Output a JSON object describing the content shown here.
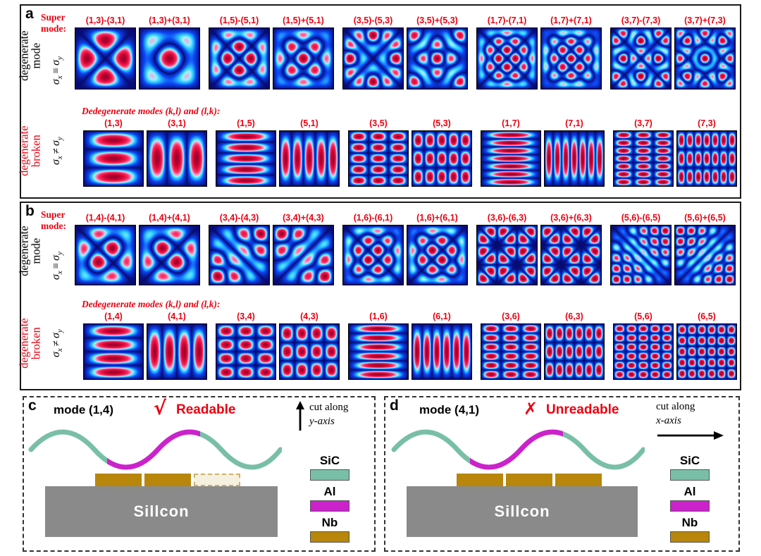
{
  "colors": {
    "accent_red": "#ec0010",
    "pattern_border": "#000000"
  },
  "panel_a": {
    "tag": "a",
    "top": {
      "side_label": "degenerate mode",
      "header": "Super mode:",
      "sigma": {
        "s": "σ",
        "sub1": "x",
        "rel": "≡",
        "sub2": "y"
      },
      "modes": [
        {
          "label": "(1,3)-(3,1)",
          "k": 1,
          "l": 3,
          "op": "-"
        },
        {
          "label": "(1,3)+(3,1)",
          "k": 1,
          "l": 3,
          "op": "+"
        },
        {
          "label": "(1,5)-(5,1)",
          "k": 1,
          "l": 5,
          "op": "-"
        },
        {
          "label": "(1,5)+(5,1)",
          "k": 1,
          "l": 5,
          "op": "+"
        },
        {
          "label": "(3,5)-(5,3)",
          "k": 3,
          "l": 5,
          "op": "-"
        },
        {
          "label": "(3,5)+(5,3)",
          "k": 3,
          "l": 5,
          "op": "+"
        },
        {
          "label": "(1,7)-(7,1)",
          "k": 1,
          "l": 7,
          "op": "-"
        },
        {
          "label": "(1,7)+(7,1)",
          "k": 1,
          "l": 7,
          "op": "+"
        },
        {
          "label": "(3,7)-(7,3)",
          "k": 3,
          "l": 7,
          "op": "-"
        },
        {
          "label": "(3,7)+(7,3)",
          "k": 3,
          "l": 7,
          "op": "+"
        }
      ]
    },
    "bottom": {
      "side_label": "degenerate broken",
      "header": "Dedegenerate modes (k,l) and (l,k):",
      "sigma": {
        "s": "σ",
        "sub1": "x",
        "rel": "≠",
        "sub2": "y"
      },
      "modes": [
        {
          "label": "(1,3)",
          "k": 1,
          "l": 3,
          "op": "pure"
        },
        {
          "label": "(3,1)",
          "k": 3,
          "l": 1,
          "op": "pure"
        },
        {
          "label": "(1,5)",
          "k": 1,
          "l": 5,
          "op": "pure"
        },
        {
          "label": "(5,1)",
          "k": 5,
          "l": 1,
          "op": "pure"
        },
        {
          "label": "(3,5)",
          "k": 3,
          "l": 5,
          "op": "pure"
        },
        {
          "label": "(5,3)",
          "k": 5,
          "l": 3,
          "op": "pure"
        },
        {
          "label": "(1,7)",
          "k": 1,
          "l": 7,
          "op": "pure"
        },
        {
          "label": "(7,1)",
          "k": 7,
          "l": 1,
          "op": "pure"
        },
        {
          "label": "(3,7)",
          "k": 3,
          "l": 7,
          "op": "pure"
        },
        {
          "label": "(7,3)",
          "k": 7,
          "l": 3,
          "op": "pure"
        }
      ]
    }
  },
  "panel_b": {
    "tag": "b",
    "top": {
      "side_label": "degenerate mode",
      "header": "Super mode:",
      "sigma": {
        "s": "σ",
        "sub1": "x",
        "rel": "≡",
        "sub2": "y"
      },
      "modes": [
        {
          "label": "(1,4)-(4,1)",
          "k": 1,
          "l": 4,
          "op": "-"
        },
        {
          "label": "(1,4)+(4,1)",
          "k": 1,
          "l": 4,
          "op": "+"
        },
        {
          "label": "(3,4)-(4,3)",
          "k": 3,
          "l": 4,
          "op": "-"
        },
        {
          "label": "(3,4)+(4,3)",
          "k": 3,
          "l": 4,
          "op": "+"
        },
        {
          "label": "(1,6)-(6,1)",
          "k": 1,
          "l": 6,
          "op": "-"
        },
        {
          "label": "(1,6)+(6,1)",
          "k": 1,
          "l": 6,
          "op": "+"
        },
        {
          "label": "(3,6)-(6,3)",
          "k": 3,
          "l": 6,
          "op": "-"
        },
        {
          "label": "(3,6)+(6,3)",
          "k": 3,
          "l": 6,
          "op": "+"
        },
        {
          "label": "(5,6)-(6,5)",
          "k": 5,
          "l": 6,
          "op": "-"
        },
        {
          "label": "(5,6)+(6,5)",
          "k": 5,
          "l": 6,
          "op": "+"
        }
      ]
    },
    "bottom": {
      "side_label": "degenerate broken",
      "header": "Dedegenerate modes (k,l) and (l,k):",
      "sigma": {
        "s": "σ",
        "sub1": "x",
        "rel": "≠",
        "sub2": "y"
      },
      "modes": [
        {
          "label": "(1,4)",
          "k": 1,
          "l": 4,
          "op": "pure"
        },
        {
          "label": "(4,1)",
          "k": 4,
          "l": 1,
          "op": "pure"
        },
        {
          "label": "(3,4)",
          "k": 3,
          "l": 4,
          "op": "pure"
        },
        {
          "label": "(4,3)",
          "k": 4,
          "l": 3,
          "op": "pure"
        },
        {
          "label": "(1,6)",
          "k": 1,
          "l": 6,
          "op": "pure"
        },
        {
          "label": "(6,1)",
          "k": 6,
          "l": 1,
          "op": "pure"
        },
        {
          "label": "(3,6)",
          "k": 3,
          "l": 6,
          "op": "pure"
        },
        {
          "label": "(6,3)",
          "k": 6,
          "l": 3,
          "op": "pure"
        },
        {
          "label": "(5,6)",
          "k": 5,
          "l": 6,
          "op": "pure"
        },
        {
          "label": "(6,5)",
          "k": 6,
          "l": 5,
          "op": "pure"
        }
      ]
    }
  },
  "panel_c": {
    "tag": "c",
    "title": "mode (1,4)",
    "mark": "√",
    "status": "Readable",
    "cut": {
      "line1": "cut along",
      "axis": "y-axis"
    },
    "substrate": {
      "label": "Sillcon",
      "color": "#8a8a8a"
    },
    "legend": [
      {
        "name": "SiC",
        "color": "#79bfa7"
      },
      {
        "name": "Al",
        "color": "#cc22cc"
      },
      {
        "name": "Nb",
        "color": "#b8860b"
      }
    ]
  },
  "panel_d": {
    "tag": "d",
    "title": "mode (4,1)",
    "mark": "✗",
    "status": "Unreadable",
    "cut": {
      "line1": "cut along",
      "axis": "x-axis"
    },
    "substrate": {
      "label": "Sillcon",
      "color": "#8a8a8a"
    },
    "legend": [
      {
        "name": "SiC",
        "color": "#79bfa7"
      },
      {
        "name": "Al",
        "color": "#cc22cc"
      },
      {
        "name": "Nb",
        "color": "#b8860b"
      }
    ]
  }
}
